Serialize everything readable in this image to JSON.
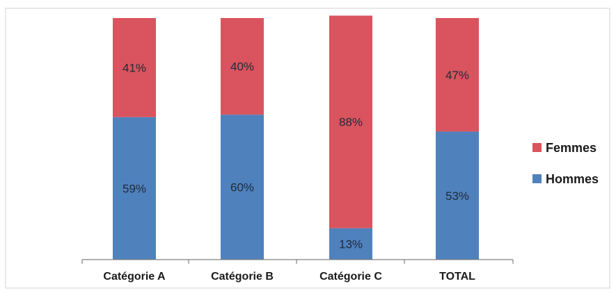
{
  "chart_data": {
    "type": "bar",
    "stacked": true,
    "normalized_percent": true,
    "categories": [
      "Catégorie A",
      "Catégorie B",
      "Catégorie C",
      "TOTAL"
    ],
    "series": [
      {
        "name": "Hommes",
        "values": [
          59,
          60,
          13,
          53
        ],
        "labels": [
          "59%",
          "60%",
          "13%",
          "53%"
        ],
        "color": "#4F81BD"
      },
      {
        "name": "Femmes",
        "values": [
          41,
          40,
          88,
          47
        ],
        "labels": [
          "41%",
          "40%",
          "88%",
          "47%"
        ],
        "color": "#D9545E"
      }
    ],
    "legend": {
      "position": "right",
      "order": [
        "Femmes",
        "Hommes"
      ]
    },
    "grid": false,
    "ylim": [
      0,
      100
    ]
  }
}
